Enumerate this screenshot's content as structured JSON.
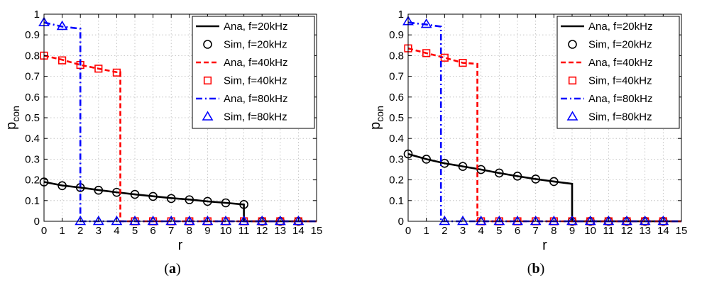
{
  "chart_data": [
    {
      "type": "line",
      "caption": "a",
      "xlabel": "r",
      "ylabel_base": "p",
      "ylabel_sub": "con",
      "xlim": [
        0,
        15
      ],
      "ylim": [
        0,
        1
      ],
      "xticks": [
        0,
        1,
        2,
        3,
        4,
        5,
        6,
        7,
        8,
        9,
        10,
        11,
        12,
        13,
        14,
        15
      ],
      "yticks": [
        0,
        0.1,
        0.2,
        0.3,
        0.4,
        0.5,
        0.6,
        0.7,
        0.8,
        0.9,
        1
      ],
      "ytick_labels": [
        "0",
        "0.1",
        "0.2",
        "0.3",
        "0.4",
        "0.5",
        "0.6",
        "0.7",
        "0.8",
        "0.9",
        "1"
      ],
      "grid": true,
      "legend_position": "top-right",
      "series": [
        {
          "name": "Ana, f=20kHz",
          "style": "solid",
          "color": "#000000",
          "x": [
            0,
            1,
            2,
            3,
            4,
            5,
            6,
            7,
            8,
            9,
            10,
            11,
            11,
            15
          ],
          "y": [
            0.19,
            0.173,
            0.163,
            0.151,
            0.14,
            0.13,
            0.121,
            0.112,
            0.105,
            0.096,
            0.089,
            0.081,
            0,
            0
          ]
        },
        {
          "name": "Sim, f=20kHz",
          "marker": "circle",
          "color": "#000000",
          "x": [
            0,
            1,
            2,
            3,
            4,
            5,
            6,
            7,
            8,
            9,
            10,
            11,
            12,
            13,
            14
          ],
          "y": [
            0.19,
            0.172,
            0.163,
            0.15,
            0.14,
            0.13,
            0.12,
            0.11,
            0.104,
            0.096,
            0.089,
            0.081,
            0,
            0,
            0
          ]
        },
        {
          "name": "Ana, f=40kHz",
          "style": "dashed",
          "color": "#ff0000",
          "x": [
            0,
            1,
            2,
            3,
            4,
            4.2,
            4.2,
            15
          ],
          "y": [
            0.8,
            0.78,
            0.755,
            0.737,
            0.72,
            0.72,
            0,
            0
          ]
        },
        {
          "name": "Sim, f=40kHz",
          "marker": "square",
          "color": "#ff0000",
          "x": [
            0,
            1,
            2,
            3,
            4,
            5,
            6,
            7,
            8,
            9,
            10,
            11,
            12,
            13,
            14
          ],
          "y": [
            0.8,
            0.777,
            0.755,
            0.737,
            0.718,
            0,
            0,
            0,
            0,
            0,
            0,
            0,
            0,
            0,
            0
          ]
        },
        {
          "name": "Ana, f=80kHz",
          "style": "dashdot",
          "color": "#0000ff",
          "x": [
            0,
            1,
            2,
            2,
            15
          ],
          "y": [
            0.96,
            0.94,
            0.93,
            0,
            0
          ]
        },
        {
          "name": "Sim, f=80kHz",
          "marker": "triangle",
          "color": "#0000ff",
          "x": [
            0,
            1,
            2,
            3,
            4,
            5,
            6,
            7,
            8,
            9,
            10,
            11,
            12,
            13,
            14
          ],
          "y": [
            0.96,
            0.942,
            0,
            0,
            0,
            0,
            0,
            0,
            0,
            0,
            0,
            0,
            0,
            0,
            0
          ]
        }
      ]
    },
    {
      "type": "line",
      "caption": "b",
      "xlabel": "r",
      "ylabel_base": "p",
      "ylabel_sub": "con",
      "xlim": [
        0,
        15
      ],
      "ylim": [
        0,
        1
      ],
      "xticks": [
        0,
        1,
        2,
        3,
        4,
        5,
        6,
        7,
        8,
        9,
        10,
        11,
        12,
        13,
        14,
        15
      ],
      "yticks": [
        0,
        0.1,
        0.2,
        0.3,
        0.4,
        0.5,
        0.6,
        0.7,
        0.8,
        0.9,
        1
      ],
      "ytick_labels": [
        "0",
        "0.1",
        "0.2",
        "0.3",
        "0.4",
        "0.5",
        "0.6",
        "0.7",
        "0.8",
        "0.9",
        "1"
      ],
      "grid": true,
      "legend_position": "top-right",
      "series": [
        {
          "name": "Ana, f=20kHz",
          "style": "solid",
          "color": "#000000",
          "x": [
            0,
            1,
            2,
            3,
            4,
            5,
            6,
            7,
            8,
            9,
            9,
            15
          ],
          "y": [
            0.325,
            0.3,
            0.28,
            0.265,
            0.25,
            0.233,
            0.218,
            0.204,
            0.192,
            0.181,
            0,
            0
          ]
        },
        {
          "name": "Sim, f=20kHz",
          "marker": "circle",
          "color": "#000000",
          "x": [
            0,
            1,
            2,
            3,
            4,
            5,
            6,
            7,
            8,
            9,
            10,
            11,
            12,
            13,
            14
          ],
          "y": [
            0.325,
            0.3,
            0.28,
            0.265,
            0.25,
            0.233,
            0.218,
            0.204,
            0.192,
            0,
            0,
            0,
            0,
            0,
            0
          ]
        },
        {
          "name": "Ana, f=40kHz",
          "style": "dashed",
          "color": "#ff0000",
          "x": [
            0,
            1,
            2,
            3,
            3.8,
            3.8,
            15
          ],
          "y": [
            0.835,
            0.812,
            0.79,
            0.765,
            0.76,
            0,
            0
          ]
        },
        {
          "name": "Sim, f=40kHz",
          "marker": "square",
          "color": "#ff0000",
          "x": [
            0,
            1,
            2,
            3,
            4,
            5,
            6,
            7,
            8,
            9,
            10,
            11,
            12,
            13,
            14
          ],
          "y": [
            0.835,
            0.812,
            0.79,
            0.765,
            0,
            0,
            0,
            0,
            0,
            0,
            0,
            0,
            0,
            0,
            0
          ]
        },
        {
          "name": "Ana, f=80kHz",
          "style": "dashdot",
          "color": "#0000ff",
          "x": [
            0,
            1,
            1.8,
            1.8,
            15
          ],
          "y": [
            0.96,
            0.95,
            0.94,
            0,
            0
          ]
        },
        {
          "name": "Sim, f=80kHz",
          "marker": "triangle",
          "color": "#0000ff",
          "x": [
            0,
            1,
            2,
            3,
            4,
            5,
            6,
            7,
            8,
            9,
            10,
            11,
            12,
            13,
            14
          ],
          "y": [
            0.965,
            0.952,
            0,
            0,
            0,
            0,
            0,
            0,
            0,
            0,
            0,
            0,
            0,
            0,
            0
          ]
        }
      ]
    }
  ]
}
